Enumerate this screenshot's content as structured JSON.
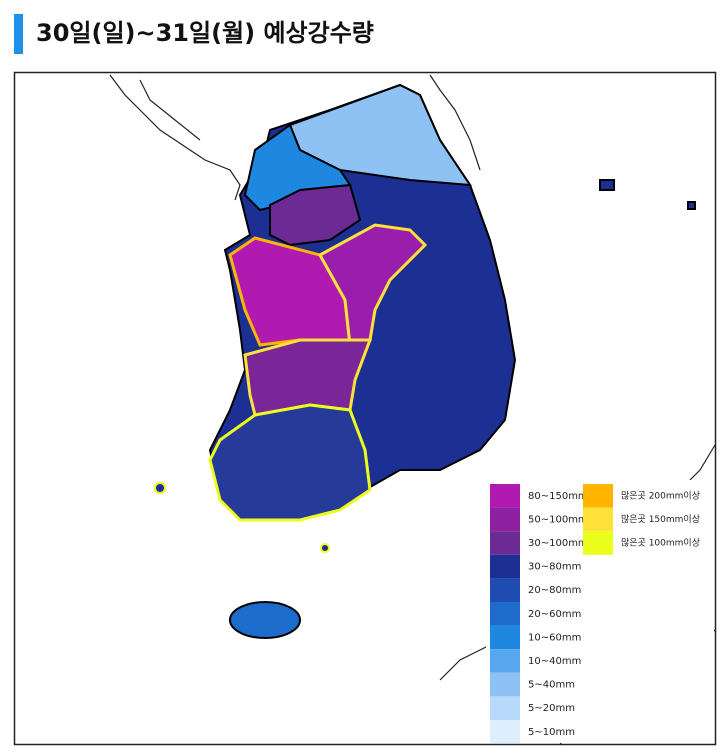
{
  "header": {
    "title": "30일(일)~31일(월) 예상강수량"
  },
  "legend": {
    "ranges": [
      {
        "label": "80~150mm",
        "color": "#b01ab0"
      },
      {
        "label": "50~100mm",
        "color": "#8e20a2"
      },
      {
        "label": "30~100mm",
        "color": "#6b2a94"
      },
      {
        "label": "30~80mm",
        "color": "#1c2f93"
      },
      {
        "label": "20~80mm",
        "color": "#1f4cb0"
      },
      {
        "label": "20~60mm",
        "color": "#1d6ccc"
      },
      {
        "label": "10~60mm",
        "color": "#1e88e0"
      },
      {
        "label": "10~40mm",
        "color": "#58a8f0"
      },
      {
        "label": "5~40mm",
        "color": "#8ec2f4"
      },
      {
        "label": "5~20mm",
        "color": "#b8dafa"
      },
      {
        "label": "5~10mm",
        "color": "#ddeffd"
      }
    ],
    "heavy": [
      {
        "label": "많은곳 200mm이상",
        "color": "#ffb400"
      },
      {
        "label": "많은곳 150mm이상",
        "color": "#ffe13a"
      },
      {
        "label": "많은곳 100mm이상",
        "color": "#ecff1c"
      }
    ]
  }
}
